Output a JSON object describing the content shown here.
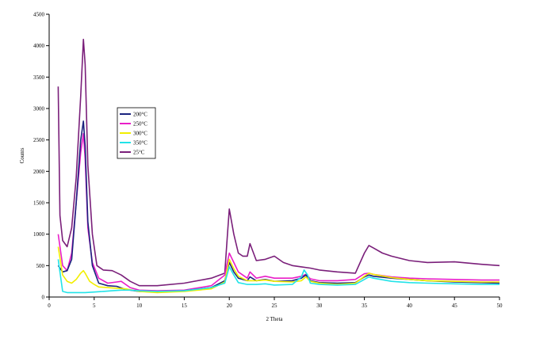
{
  "chart_data": {
    "type": "line",
    "title": "",
    "xlabel": "2 Theta",
    "ylabel": "Counts",
    "xlim": [
      0,
      50
    ],
    "ylim": [
      0,
      4500
    ],
    "x_ticks": [
      "0",
      "5",
      "10",
      "15",
      "20",
      "25",
      "30",
      "35",
      "40",
      "45",
      "50"
    ],
    "y_ticks": [
      "0",
      "500",
      "1000",
      "1500",
      "2000",
      "2500",
      "3000",
      "3500",
      "4000",
      "4500"
    ],
    "grid": false,
    "legend_position": "upper-left inside plot",
    "series": [
      {
        "name": "200°C",
        "color": "#1a237e",
        "x": [
          1,
          1.5,
          2,
          2.5,
          3,
          3.5,
          3.8,
          4,
          4.3,
          4.8,
          5.5,
          6.5,
          7.5,
          8.5,
          10,
          12,
          15,
          18,
          19.5,
          20,
          20.5,
          21,
          22,
          22.3,
          23,
          24,
          25,
          27,
          28,
          28.5,
          29,
          30,
          32,
          34,
          35,
          35.5,
          36,
          38,
          40,
          42,
          45,
          48,
          50
        ],
        "y": [
          500,
          400,
          420,
          600,
          1500,
          2500,
          2800,
          2400,
          1200,
          500,
          220,
          180,
          170,
          120,
          90,
          80,
          100,
          150,
          260,
          550,
          400,
          300,
          260,
          320,
          260,
          280,
          250,
          260,
          300,
          350,
          260,
          230,
          220,
          230,
          320,
          350,
          330,
          300,
          280,
          260,
          240,
          230,
          220
        ]
      },
      {
        "name": "250°C",
        "color": "#e91ec8",
        "x": [
          1,
          1.5,
          2,
          2.5,
          3,
          3.5,
          3.8,
          4,
          4.3,
          4.8,
          5.5,
          6.5,
          7.5,
          8,
          9,
          10,
          12,
          15,
          18,
          19.5,
          20,
          20.5,
          21,
          22,
          22.3,
          23,
          24,
          25,
          27,
          28,
          28.5,
          29,
          30,
          32,
          34,
          35,
          35.5,
          36,
          38,
          40,
          42,
          45,
          48,
          50
        ],
        "y": [
          1000,
          500,
          420,
          700,
          1500,
          2300,
          2600,
          2200,
          1100,
          550,
          300,
          220,
          240,
          250,
          150,
          110,
          100,
          110,
          180,
          350,
          700,
          550,
          400,
          300,
          400,
          300,
          330,
          300,
          300,
          330,
          360,
          290,
          260,
          260,
          280,
          370,
          380,
          360,
          320,
          300,
          290,
          280,
          270,
          270
        ]
      },
      {
        "name": "300°C",
        "color": "#f2ee00",
        "x": [
          1,
          1.5,
          2,
          2.5,
          3,
          3.5,
          3.8,
          4,
          4.5,
          5,
          5.5,
          6.5,
          7.5,
          8.5,
          10,
          12,
          15,
          18,
          19.5,
          20,
          20.5,
          21,
          22,
          23,
          24,
          25,
          27,
          28,
          28.5,
          29,
          30,
          32,
          34,
          35,
          35.5,
          36,
          38,
          40,
          42,
          45,
          48,
          50
        ],
        "y": [
          800,
          350,
          250,
          220,
          280,
          380,
          420,
          380,
          250,
          200,
          160,
          150,
          140,
          130,
          90,
          70,
          90,
          130,
          240,
          600,
          450,
          330,
          260,
          260,
          270,
          250,
          240,
          260,
          320,
          250,
          220,
          200,
          220,
          330,
          380,
          360,
          310,
          280,
          260,
          250,
          240,
          240
        ]
      },
      {
        "name": "350°C",
        "color": "#22e3e8",
        "x": [
          1,
          1.5,
          2,
          3,
          4,
          5,
          6,
          7,
          8,
          9,
          10,
          12,
          15,
          18,
          19.5,
          20,
          20.5,
          21,
          22,
          23,
          24,
          25,
          27,
          28,
          28.3,
          28.7,
          29,
          30,
          32,
          34,
          35,
          35.5,
          36,
          38,
          40,
          42,
          45,
          48,
          50
        ],
        "y": [
          600,
          90,
          70,
          70,
          70,
          80,
          90,
          100,
          110,
          110,
          100,
          90,
          100,
          150,
          220,
          480,
          350,
          230,
          200,
          200,
          210,
          190,
          200,
          320,
          430,
          350,
          220,
          200,
          190,
          200,
          280,
          320,
          300,
          250,
          230,
          220,
          210,
          200,
          200
        ]
      },
      {
        "name": "25°C",
        "color": "#7a1f7a",
        "x": [
          1,
          1.2,
          1.5,
          2,
          2.5,
          3,
          3.5,
          3.8,
          4,
          4.3,
          4.8,
          5.3,
          6,
          7,
          8,
          9,
          10,
          12,
          15,
          18,
          19.5,
          19.8,
          20,
          20.5,
          21,
          21.5,
          22,
          22.3,
          23,
          24,
          25,
          26,
          27,
          28,
          29,
          30,
          32,
          34,
          35,
          35.5,
          36,
          37,
          38,
          40,
          42,
          45,
          48,
          50
        ],
        "y": [
          3350,
          1300,
          900,
          800,
          1100,
          1900,
          3200,
          4100,
          3700,
          2100,
          1000,
          500,
          430,
          420,
          350,
          250,
          180,
          180,
          220,
          300,
          380,
          1000,
          1400,
          1000,
          700,
          650,
          650,
          850,
          580,
          600,
          650,
          550,
          500,
          480,
          460,
          430,
          400,
          380,
          700,
          820,
          780,
          700,
          650,
          580,
          550,
          560,
          520,
          500
        ]
      }
    ]
  }
}
